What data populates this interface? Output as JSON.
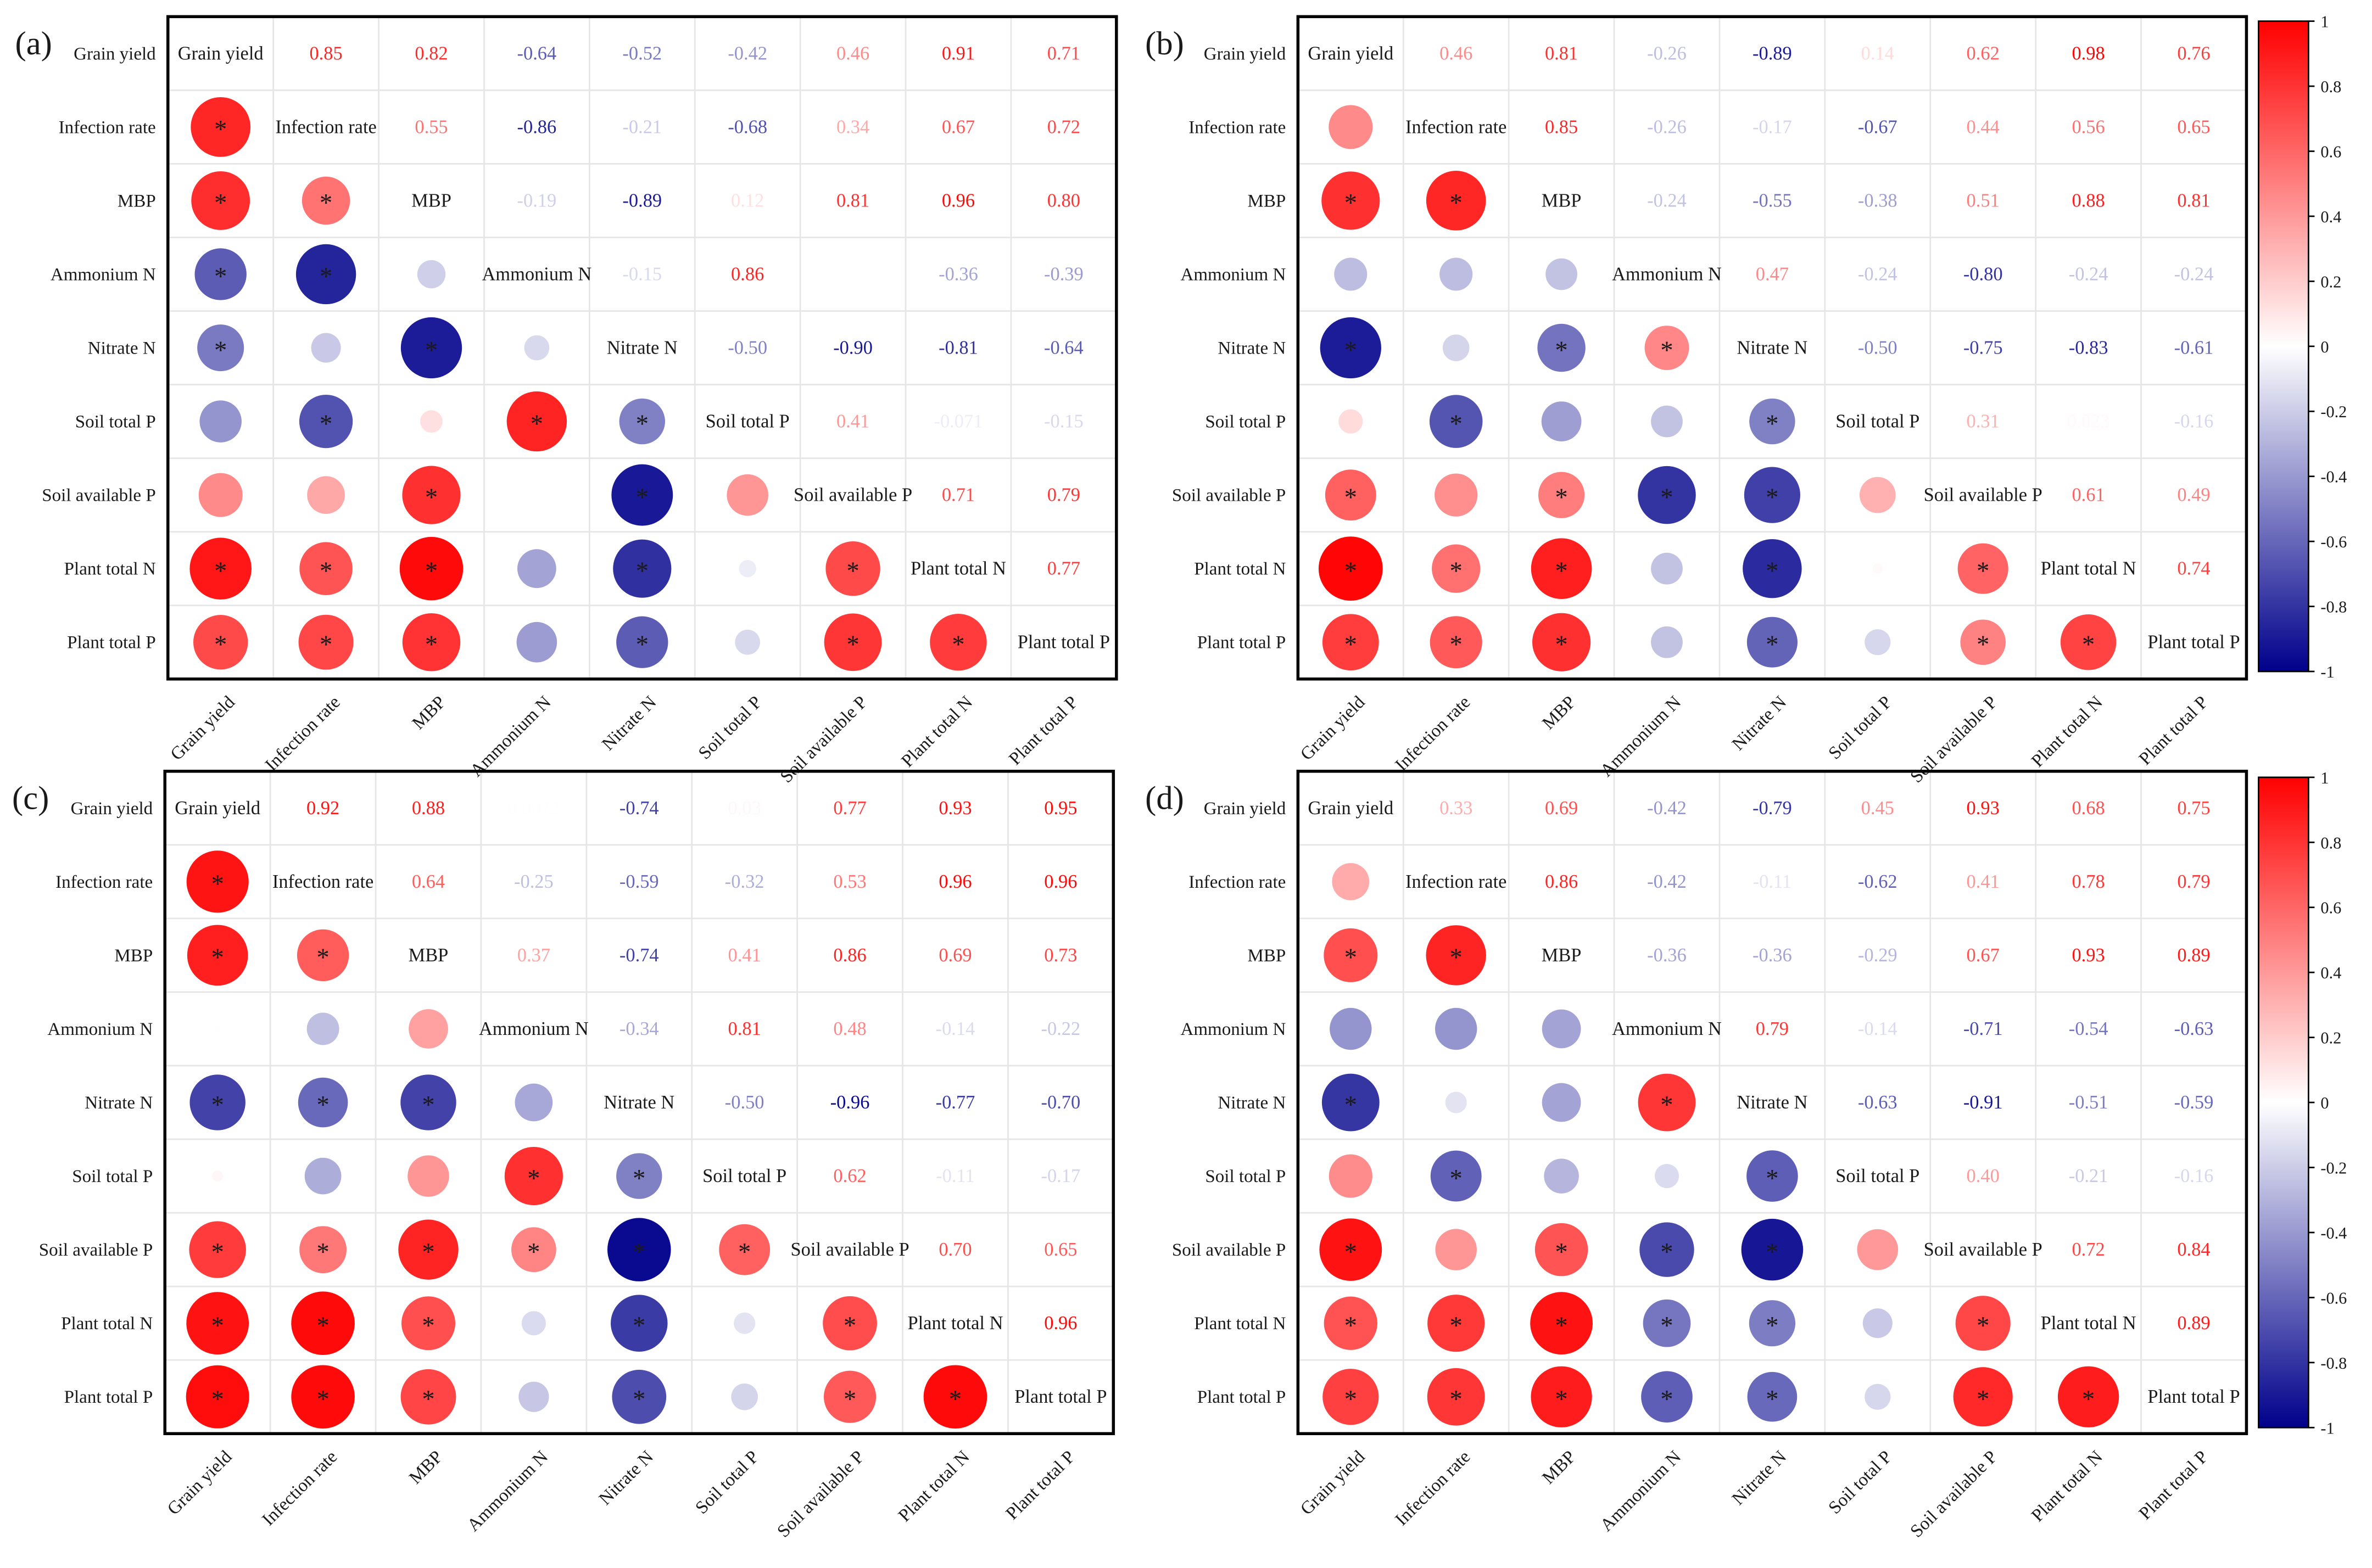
{
  "variables": [
    "Grain yield",
    "Infection rate",
    "MBP",
    "Ammonium N",
    "Nitrate N",
    "Soil total P",
    "Soil available P",
    "Plant total N",
    "Plant total P"
  ],
  "colorbar": {
    "ticks": [
      "1",
      "0.8",
      "0.6",
      "0.4",
      "0.2",
      "0",
      "-0.2",
      "-0.4",
      "-0.6",
      "-0.8",
      "-1"
    ],
    "colors": {
      "positive": "#ff0000",
      "zero": "#ffffff",
      "negative": "#00008b"
    }
  },
  "chart_data": [
    {
      "panel": "(a)",
      "type": "heatmap",
      "upper_values": [
        [
          "",
          "0.85",
          "0.82",
          "-0.64",
          "-0.52",
          "-0.42",
          "0.46",
          "0.91",
          "0.71"
        ],
        [
          "",
          "",
          "0.55",
          "-0.86",
          "-0.21",
          "-0.68",
          "0.34",
          "0.67",
          "0.72"
        ],
        [
          "",
          "",
          "",
          "-0.19",
          "-0.89",
          "0.12",
          "0.81",
          "0.96",
          "0.80"
        ],
        [
          "",
          "",
          "",
          "",
          "-0.15",
          "0.86",
          "",
          "-0.36",
          "-0.39"
        ],
        [
          "",
          "",
          "",
          "",
          "",
          "-0.50",
          "-0.90",
          "-0.81",
          "-0.64"
        ],
        [
          "",
          "",
          "",
          "",
          "",
          "",
          "0.41",
          "-0.071",
          "-0.15"
        ],
        [
          "",
          "",
          "",
          "",
          "",
          "",
          "",
          "0.71",
          "0.79"
        ],
        [
          "",
          "",
          "",
          "",
          "",
          "",
          "",
          "",
          "0.77"
        ],
        [
          "",
          "",
          "",
          "",
          "",
          "",
          "",
          "",
          ""
        ]
      ],
      "lower": [
        [],
        [
          [
            0.85,
            true
          ]
        ],
        [
          [
            0.82,
            true
          ],
          [
            0.55,
            true
          ]
        ],
        [
          [
            -0.64,
            true
          ],
          [
            -0.86,
            true
          ],
          [
            -0.19,
            false
          ]
        ],
        [
          [
            -0.52,
            true
          ],
          [
            -0.21,
            false
          ],
          [
            -0.89,
            true
          ],
          [
            -0.15,
            false
          ]
        ],
        [
          [
            -0.42,
            false
          ],
          [
            -0.68,
            true
          ],
          [
            0.12,
            false
          ],
          [
            0.86,
            true
          ],
          [
            -0.5,
            true
          ]
        ],
        [
          [
            0.46,
            false
          ],
          [
            0.34,
            false
          ],
          [
            0.81,
            true
          ],
          [
            0.0,
            false
          ],
          [
            -0.9,
            true
          ],
          [
            0.41,
            false
          ]
        ],
        [
          [
            0.91,
            true
          ],
          [
            0.67,
            true
          ],
          [
            0.96,
            true
          ],
          [
            -0.36,
            false
          ],
          [
            -0.81,
            true
          ],
          [
            -0.071,
            false
          ],
          [
            0.71,
            true
          ]
        ],
        [
          [
            0.71,
            true
          ],
          [
            0.72,
            true
          ],
          [
            0.8,
            true
          ],
          [
            -0.39,
            false
          ],
          [
            -0.64,
            true
          ],
          [
            -0.15,
            false
          ],
          [
            0.79,
            true
          ],
          [
            0.77,
            true
          ]
        ]
      ]
    },
    {
      "panel": "(b)",
      "type": "heatmap",
      "upper_values": [
        [
          "",
          "0.46",
          "0.81",
          "-0.26",
          "-0.89",
          "0.14",
          "0.62",
          "0.98",
          "0.76"
        ],
        [
          "",
          "",
          "0.85",
          "-0.26",
          "-0.17",
          "-0.67",
          "0.44",
          "0.56",
          "0.65"
        ],
        [
          "",
          "",
          "",
          "-0.24",
          "-0.55",
          "-0.38",
          "0.51",
          "0.88",
          "0.81"
        ],
        [
          "",
          "",
          "",
          "",
          "0.47",
          "-0.24",
          "-0.80",
          "-0.24",
          "-0.24"
        ],
        [
          "",
          "",
          "",
          "",
          "",
          "-0.50",
          "-0.75",
          "-0.83",
          "-0.61"
        ],
        [
          "",
          "",
          "",
          "",
          "",
          "",
          "0.31",
          "0.023",
          "-0.16"
        ],
        [
          "",
          "",
          "",
          "",
          "",
          "",
          "",
          "0.61",
          "0.49"
        ],
        [
          "",
          "",
          "",
          "",
          "",
          "",
          "",
          "",
          "0.74"
        ],
        [
          "",
          "",
          "",
          "",
          "",
          "",
          "",
          "",
          ""
        ]
      ],
      "lower": [
        [],
        [
          [
            0.46,
            false
          ]
        ],
        [
          [
            0.81,
            true
          ],
          [
            0.85,
            true
          ]
        ],
        [
          [
            -0.26,
            false
          ],
          [
            -0.26,
            false
          ],
          [
            -0.24,
            false
          ]
        ],
        [
          [
            -0.89,
            true
          ],
          [
            -0.17,
            false
          ],
          [
            -0.55,
            true
          ],
          [
            0.47,
            true
          ]
        ],
        [
          [
            0.14,
            false
          ],
          [
            -0.67,
            true
          ],
          [
            -0.38,
            false
          ],
          [
            -0.24,
            false
          ],
          [
            -0.5,
            true
          ]
        ],
        [
          [
            0.62,
            true
          ],
          [
            0.44,
            false
          ],
          [
            0.51,
            true
          ],
          [
            -0.8,
            true
          ],
          [
            -0.75,
            true
          ],
          [
            0.31,
            false
          ]
        ],
        [
          [
            0.98,
            true
          ],
          [
            0.56,
            true
          ],
          [
            0.88,
            true
          ],
          [
            -0.24,
            false
          ],
          [
            -0.83,
            true
          ],
          [
            0.023,
            false
          ],
          [
            0.61,
            true
          ]
        ],
        [
          [
            0.76,
            true
          ],
          [
            0.65,
            true
          ],
          [
            0.81,
            true
          ],
          [
            -0.24,
            false
          ],
          [
            -0.61,
            true
          ],
          [
            -0.16,
            false
          ],
          [
            0.49,
            true
          ],
          [
            0.74,
            true
          ]
        ]
      ]
    },
    {
      "panel": "(c)",
      "type": "heatmap",
      "upper_values": [
        [
          "",
          "0.92",
          "0.88",
          "0.0072",
          "-0.74",
          "0.03",
          "0.77",
          "0.93",
          "0.95"
        ],
        [
          "",
          "",
          "0.64",
          "-0.25",
          "-0.59",
          "-0.32",
          "0.53",
          "0.96",
          "0.96"
        ],
        [
          "",
          "",
          "",
          "0.37",
          "-0.74",
          "0.41",
          "0.86",
          "0.69",
          "0.73"
        ],
        [
          "",
          "",
          "",
          "",
          "-0.34",
          "0.81",
          "0.48",
          "-0.14",
          "-0.22"
        ],
        [
          "",
          "",
          "",
          "",
          "",
          "-0.50",
          "-0.96",
          "-0.77",
          "-0.70"
        ],
        [
          "",
          "",
          "",
          "",
          "",
          "",
          "0.62",
          "-0.11",
          "-0.17"
        ],
        [
          "",
          "",
          "",
          "",
          "",
          "",
          "",
          "0.70",
          "0.65"
        ],
        [
          "",
          "",
          "",
          "",
          "",
          "",
          "",
          "",
          "0.96"
        ],
        [
          "",
          "",
          "",
          "",
          "",
          "",
          "",
          "",
          ""
        ]
      ],
      "lower": [
        [],
        [
          [
            0.92,
            true
          ]
        ],
        [
          [
            0.88,
            true
          ],
          [
            0.64,
            true
          ]
        ],
        [
          [
            0.0072,
            false
          ],
          [
            -0.25,
            false
          ],
          [
            0.37,
            false
          ]
        ],
        [
          [
            -0.74,
            true
          ],
          [
            -0.59,
            true
          ],
          [
            -0.74,
            true
          ],
          [
            -0.34,
            false
          ]
        ],
        [
          [
            0.03,
            false
          ],
          [
            -0.32,
            false
          ],
          [
            0.41,
            false
          ],
          [
            0.81,
            true
          ],
          [
            -0.5,
            true
          ]
        ],
        [
          [
            0.77,
            true
          ],
          [
            0.53,
            true
          ],
          [
            0.86,
            true
          ],
          [
            0.48,
            true
          ],
          [
            -0.96,
            true
          ],
          [
            0.62,
            true
          ]
        ],
        [
          [
            0.93,
            true
          ],
          [
            0.96,
            true
          ],
          [
            0.69,
            true
          ],
          [
            -0.14,
            false
          ],
          [
            -0.77,
            true
          ],
          [
            -0.11,
            false
          ],
          [
            0.7,
            true
          ]
        ],
        [
          [
            0.95,
            true
          ],
          [
            0.96,
            true
          ],
          [
            0.73,
            true
          ],
          [
            -0.22,
            false
          ],
          [
            -0.7,
            true
          ],
          [
            -0.17,
            false
          ],
          [
            0.65,
            true
          ],
          [
            0.96,
            true
          ]
        ]
      ]
    },
    {
      "panel": "(d)",
      "type": "heatmap",
      "upper_values": [
        [
          "",
          "0.33",
          "0.69",
          "-0.42",
          "-0.79",
          "0.45",
          "0.93",
          "0.68",
          "0.75"
        ],
        [
          "",
          "",
          "0.86",
          "-0.42",
          "-0.11",
          "-0.62",
          "0.41",
          "0.78",
          "0.79"
        ],
        [
          "",
          "",
          "",
          "-0.36",
          "-0.36",
          "-0.29",
          "0.67",
          "0.93",
          "0.89"
        ],
        [
          "",
          "",
          "",
          "",
          "0.79",
          "-0.14",
          "-0.71",
          "-0.54",
          "-0.63"
        ],
        [
          "",
          "",
          "",
          "",
          "",
          "-0.63",
          "-0.91",
          "-0.51",
          "-0.59"
        ],
        [
          "",
          "",
          "",
          "",
          "",
          "",
          "0.40",
          "-0.21",
          "-0.16"
        ],
        [
          "",
          "",
          "",
          "",
          "",
          "",
          "",
          "0.72",
          "0.84"
        ],
        [
          "",
          "",
          "",
          "",
          "",
          "",
          "",
          "",
          "0.89"
        ],
        [
          "",
          "",
          "",
          "",
          "",
          "",
          "",
          "",
          ""
        ]
      ],
      "lower": [
        [],
        [
          [
            0.33,
            false
          ]
        ],
        [
          [
            0.69,
            true
          ],
          [
            0.86,
            true
          ]
        ],
        [
          [
            -0.42,
            false
          ],
          [
            -0.42,
            false
          ],
          [
            -0.36,
            false
          ]
        ],
        [
          [
            -0.79,
            true
          ],
          [
            -0.11,
            false
          ],
          [
            -0.36,
            false
          ],
          [
            0.79,
            true
          ]
        ],
        [
          [
            0.45,
            false
          ],
          [
            -0.62,
            true
          ],
          [
            -0.29,
            false
          ],
          [
            -0.14,
            false
          ],
          [
            -0.63,
            true
          ]
        ],
        [
          [
            0.93,
            true
          ],
          [
            0.41,
            false
          ],
          [
            0.67,
            true
          ],
          [
            -0.71,
            true
          ],
          [
            -0.91,
            true
          ],
          [
            0.4,
            false
          ]
        ],
        [
          [
            0.68,
            true
          ],
          [
            0.78,
            true
          ],
          [
            0.93,
            true
          ],
          [
            -0.54,
            true
          ],
          [
            -0.51,
            true
          ],
          [
            -0.21,
            false
          ],
          [
            0.72,
            true
          ]
        ],
        [
          [
            0.75,
            true
          ],
          [
            0.79,
            true
          ],
          [
            0.89,
            true
          ],
          [
            -0.63,
            true
          ],
          [
            -0.59,
            true
          ],
          [
            -0.16,
            false
          ],
          [
            0.84,
            true
          ],
          [
            0.89,
            true
          ]
        ]
      ]
    }
  ]
}
